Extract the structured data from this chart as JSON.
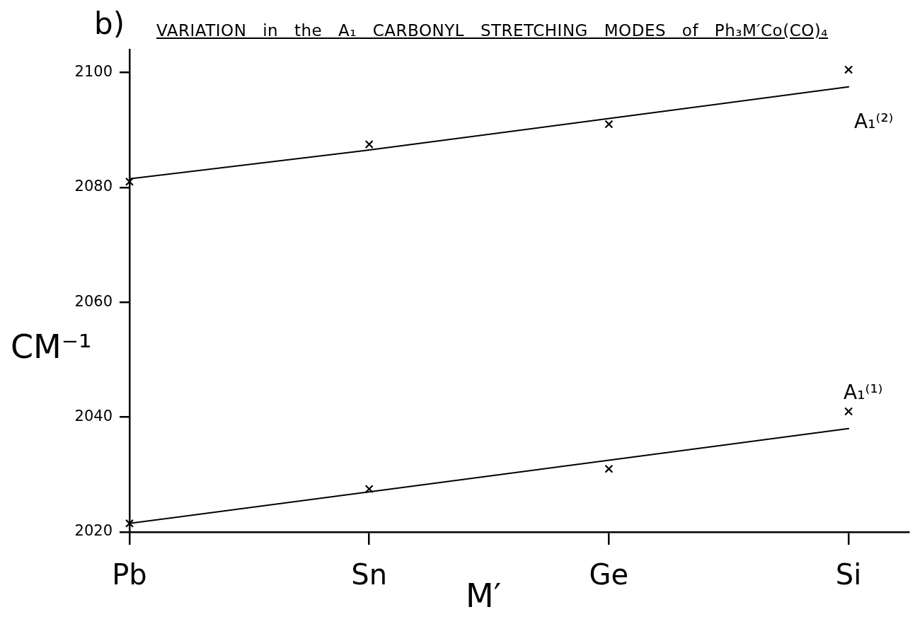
{
  "chart_data": {
    "type": "scatter",
    "title": "VARIATION in the A₁ CARBONYL STRETCHING MODES of Ph₃M′Co(CO)₄",
    "xlabel": "M′",
    "ylabel": "CM⁻¹",
    "annotations": [
      "b)"
    ],
    "categories": [
      "Pb",
      "Sn",
      "Ge",
      "Si"
    ],
    "series": [
      {
        "name": "A₁⁽²⁾",
        "color": "#000000",
        "marker": "cross",
        "values": [
          2081,
          2087.5,
          2091,
          2100.5
        ]
      },
      {
        "name": "A₁⁽¹⁾",
        "color": "#000000",
        "marker": "cross",
        "values": [
          2021.5,
          2027.5,
          2031,
          2041
        ]
      },
      {
        "type": "line",
        "color": "#000000",
        "values": [
          2081.5,
          2086.5,
          2092,
          2097.5
        ]
      },
      {
        "type": "line",
        "color": "#000000",
        "values": [
          2021.5,
          2027,
          2032.5,
          2038
        ]
      }
    ],
    "ylim": [
      2020,
      2104
    ],
    "yticks": [
      2020,
      2040,
      2060,
      2080,
      2100
    ]
  }
}
